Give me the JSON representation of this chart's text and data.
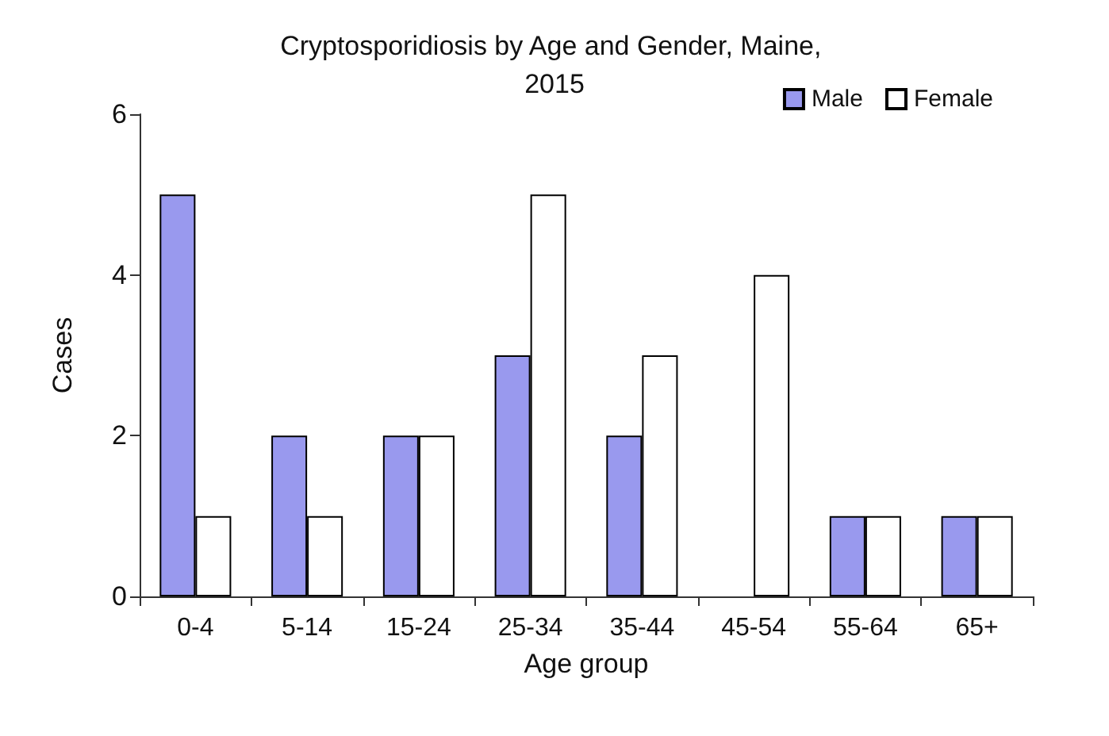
{
  "chart_data": {
    "type": "bar",
    "title": "Cryptosporidiosis by Age and Gender, Maine, 2015",
    "xlabel": "Age group",
    "ylabel": "Cases",
    "categories": [
      "0-4",
      "5-14",
      "15-24",
      "25-34",
      "35-44",
      "45-54",
      "55-64",
      "65+"
    ],
    "series": [
      {
        "name": "Male",
        "color": "#9999ee",
        "values": [
          5,
          2,
          2,
          3,
          2,
          0,
          1,
          1
        ]
      },
      {
        "name": "Female",
        "color": "#ffffff",
        "values": [
          1,
          1,
          2,
          5,
          3,
          4,
          1,
          1
        ]
      }
    ],
    "ylim": [
      0,
      6
    ],
    "yticks": [
      0,
      2,
      4,
      6
    ],
    "grid": false,
    "legend": "top right"
  }
}
